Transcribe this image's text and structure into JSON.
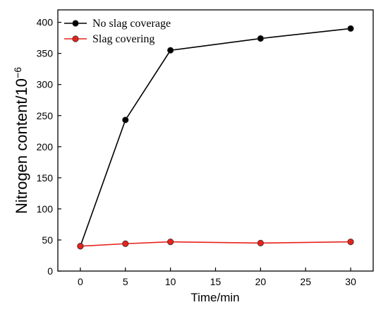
{
  "chart_data": {
    "type": "line",
    "xlabel": "Time/min",
    "ylabel": "Nitrogen content/10",
    "ylabel_exponent": "−6",
    "xlim": [
      -2.5,
      32.5
    ],
    "ylim": [
      0,
      420
    ],
    "x_ticks": [
      0,
      5,
      10,
      15,
      20,
      25,
      30
    ],
    "y_ticks": [
      0,
      50,
      100,
      150,
      200,
      250,
      300,
      350,
      400
    ],
    "grid": false,
    "legend_position": "top-left",
    "x": [
      0,
      5,
      10,
      20,
      30
    ],
    "series": [
      {
        "name": "No slag coverage",
        "color": "#000000",
        "values": [
          40,
          243,
          355,
          374,
          390
        ]
      },
      {
        "name": "Slag covering",
        "color": "#e8221b",
        "values": [
          40,
          44,
          47,
          45,
          47
        ]
      }
    ]
  }
}
